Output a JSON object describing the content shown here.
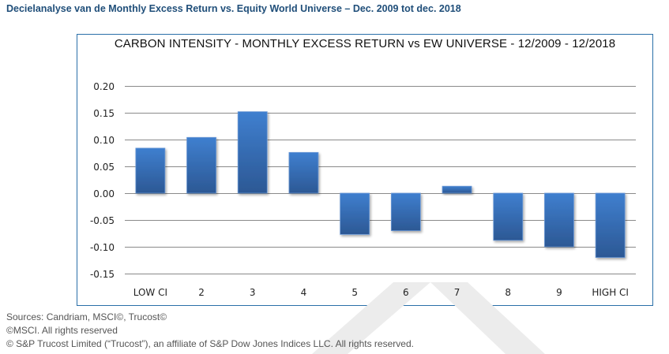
{
  "header": {
    "title": "Decielanalyse van de Monthly Excess Return vs. Equity World Universe – Dec. 2009 tot dec. 2018"
  },
  "chart_data": {
    "type": "bar",
    "title": "CARBON INTENSITY - MONTHLY EXCESS RETURN vs EW UNIVERSE - 12/2009 - 12/2018",
    "xlabel": "",
    "ylabel": "",
    "categories": [
      "LOW CI",
      "2",
      "3",
      "4",
      "5",
      "6",
      "7",
      "8",
      "9",
      "HIGH CI"
    ],
    "values": [
      0.084,
      0.104,
      0.152,
      0.076,
      -0.077,
      -0.07,
      0.013,
      -0.088,
      -0.1,
      -0.12
    ],
    "ylim": [
      -0.15,
      0.2
    ],
    "yticks": [
      0.2,
      0.15,
      0.1,
      0.05,
      0.0,
      -0.05,
      -0.1,
      -0.15
    ],
    "ytick_labels": [
      "0.20",
      "0.15",
      "0.10",
      "0.05",
      "0.00",
      "-0.05",
      "-0.10",
      "-0.15"
    ],
    "grid": true,
    "legend": "none",
    "bar_color_top": "#3f7fcf",
    "bar_color_bottom": "#2c5894",
    "border_color": "#2a6fa8"
  },
  "footer": {
    "sources": "Sources: Candriam, MSCI©, Trucost©",
    "msci": "©MSCI. All rights reserved",
    "trucost": "© S&P Trucost Limited (“Trucost”), an affiliate of S&P Dow Jones Indices LLC. All rights reserved."
  }
}
